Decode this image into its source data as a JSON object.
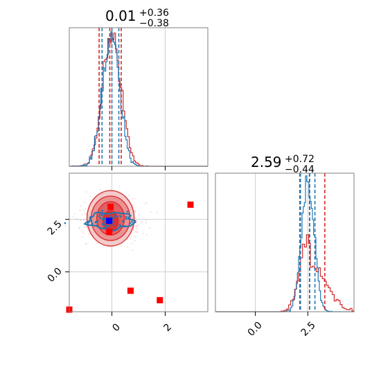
{
  "chart_data": {
    "type": "corner",
    "grid": true,
    "colors": {
      "blue": "#1f77b4",
      "red": "#d62728",
      "axes": "#7f7f7f",
      "grid": "#cfcfcf"
    },
    "param1": {
      "title": {
        "median": "0.01",
        "plus": "+0.36",
        "minus": "−0.38"
      },
      "range": [
        -1.6,
        3.6
      ],
      "ticks": [
        0,
        2
      ],
      "tick_labels": [
        "0",
        "2"
      ],
      "quantiles_blue": [
        -0.37,
        0.0,
        0.26
      ],
      "quantiles_red": [
        -0.48,
        -0.08,
        0.35
      ]
    },
    "param2": {
      "title": {
        "median": "2.59",
        "plus": "+0.72",
        "minus": "−0.44"
      },
      "range": [
        -1.9,
        4.7
      ],
      "ticks": [
        0.0,
        2.5
      ],
      "tick_labels": [
        "0.0",
        "2.5"
      ],
      "quantiles_blue": [
        2.15,
        2.59,
        2.84
      ],
      "quantiles_red": [
        2.12,
        2.58,
        3.31
      ]
    },
    "markers": {
      "red_squares": [
        [
          -1.6,
          -1.8
        ],
        [
          0.7,
          -0.9
        ],
        [
          1.8,
          -1.35
        ],
        [
          2.95,
          3.2
        ],
        [
          -0.1,
          1.9
        ],
        [
          -0.05,
          3.1
        ]
      ],
      "blue_square": [
        -0.1,
        2.43
      ]
    }
  }
}
